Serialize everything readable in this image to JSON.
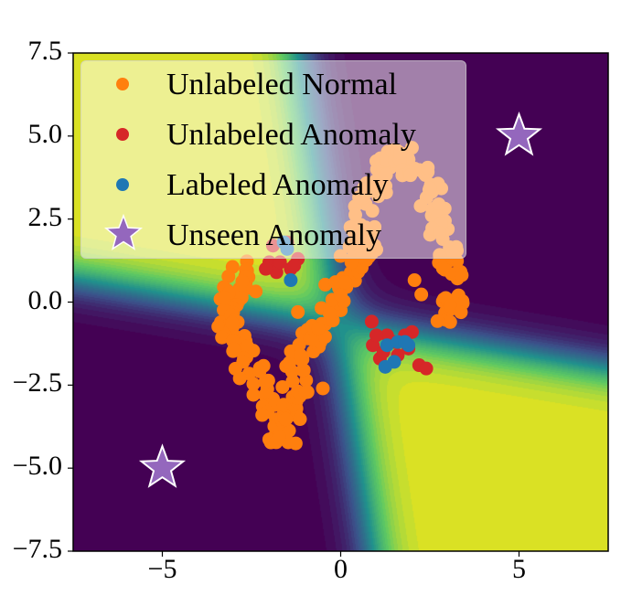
{
  "chart_data": {
    "type": "scatter",
    "title": "",
    "xlabel": "",
    "ylabel": "",
    "xlim": [
      -7.5,
      7.5
    ],
    "ylim": [
      -7.5,
      7.5
    ],
    "grid": false,
    "legend_placement": "upper-left",
    "x_ticks": [
      "−5",
      "0",
      "5"
    ],
    "x_tick_values": [
      -5,
      0,
      5
    ],
    "y_ticks": [
      "7.5",
      "5.0",
      "2.5",
      "0.0",
      "−2.5",
      "−5.0",
      "−7.5"
    ],
    "y_tick_values": [
      7.5,
      5.0,
      2.5,
      0.0,
      -2.5,
      -5.0,
      -7.5
    ],
    "background": {
      "type": "contourf",
      "colormap": "viridis",
      "description_regions": "high score top-left and bottom-right quadrants",
      "line1": {
        "x_at_y_top": -1.2,
        "x_at_y_bottom": 0.9
      },
      "line2": {
        "y_at_x_left": 0.7,
        "y_at_x_right": -2.0
      }
    },
    "series": [
      {
        "name": "Unlabeled Normal",
        "color": "#ff7f0e",
        "marker": "circle",
        "spines": [
          [
            [
              -2.7,
              0.9
            ],
            [
              -3.1,
              0.3
            ],
            [
              -3.2,
              -0.2
            ],
            [
              -3.0,
              -1.1
            ],
            [
              -2.5,
              -2.1
            ],
            [
              -1.95,
              -3.0
            ],
            [
              -1.6,
              -4.2
            ],
            [
              -1.3,
              -3.0
            ],
            [
              -1.28,
              -2.1
            ],
            [
              -0.8,
              -1.1
            ],
            [
              -0.23,
              -0.2
            ],
            [
              0.16,
              0.8
            ],
            [
              0.63,
              1.6
            ]
          ],
          [
            [
              0.63,
              1.6
            ],
            [
              0.63,
              2.3
            ],
            [
              0.92,
              3.5
            ],
            [
              1.3,
              4.3
            ],
            [
              1.9,
              4.3
            ],
            [
              2.45,
              3.5
            ],
            [
              2.83,
              2.3
            ],
            [
              3.03,
              1.3
            ],
            [
              3.12,
              0.2
            ],
            [
              3.07,
              -0.6
            ]
          ]
        ],
        "extra_points": [
          [
            2.07,
            0.66
          ],
          [
            2.26,
            0.23
          ],
          [
            -2.38,
            0.32
          ],
          [
            -1.2,
            -0.3
          ],
          [
            -0.5,
            -2.6
          ],
          [
            -2.2,
            -3.4
          ],
          [
            0.0,
            0.2
          ],
          [
            0.3,
            1.2
          ]
        ]
      },
      {
        "name": "Unlabeled Anomaly",
        "color": "#d62728",
        "marker": "circle",
        "points": [
          [
            -2.0,
            1.2
          ],
          [
            -1.8,
            0.9
          ],
          [
            -1.4,
            1.0
          ],
          [
            -1.2,
            1.3
          ],
          [
            -1.9,
            1.7
          ],
          [
            -1.5,
            1.8
          ],
          [
            -1.3,
            1.1
          ],
          [
            -2.1,
            1.0
          ],
          [
            -1.7,
            1.2
          ],
          [
            0.87,
            -0.59
          ],
          [
            0.9,
            -1.3
          ],
          [
            1.1,
            -1.7
          ],
          [
            1.3,
            -1.0
          ],
          [
            1.6,
            -1.6
          ],
          [
            2.0,
            -0.9
          ],
          [
            2.2,
            -1.9
          ],
          [
            2.4,
            -2.0
          ],
          [
            1.5,
            -1.2
          ],
          [
            1.9,
            -1.4
          ],
          [
            1.0,
            -1.0
          ],
          [
            1.8,
            -1.0
          ],
          [
            1.2,
            -1.5
          ]
        ]
      },
      {
        "name": "Labeled Anomaly",
        "color": "#1f77b4",
        "marker": "circle",
        "points": [
          [
            -1.6,
            1.8
          ],
          [
            -1.5,
            1.6
          ],
          [
            -1.4,
            0.66
          ],
          [
            1.3,
            -1.3
          ],
          [
            1.6,
            -1.2
          ],
          [
            1.9,
            -1.3
          ],
          [
            1.5,
            -1.8
          ],
          [
            1.25,
            -1.95
          ],
          [
            1.8,
            -1.2
          ]
        ]
      },
      {
        "name": "Unseen Anomaly",
        "color": "#9467bd",
        "marker": "star",
        "points": [
          [
            5,
            5
          ],
          [
            -5,
            -5
          ]
        ]
      }
    ]
  },
  "legend": {
    "items": [
      {
        "label": "Unlabeled Normal",
        "color": "#ff7f0e",
        "marker": "circle"
      },
      {
        "label": "Unlabeled Anomaly",
        "color": "#d62728",
        "marker": "circle"
      },
      {
        "label": "Labeled Anomaly",
        "color": "#1f77b4",
        "marker": "circle"
      },
      {
        "label": "Unseen Anomaly",
        "color": "#9467bd",
        "marker": "star"
      }
    ]
  }
}
